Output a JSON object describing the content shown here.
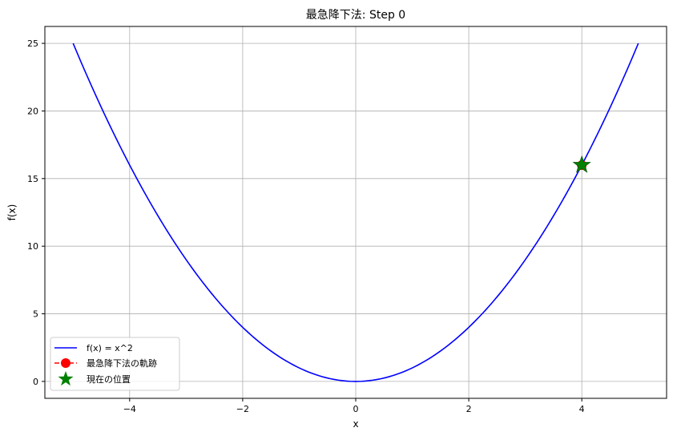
{
  "chart_data": {
    "type": "line",
    "title": "最急降下法: Step 0",
    "xlabel": "x",
    "ylabel": "f(x)",
    "xlim": [
      -5.5,
      5.5
    ],
    "ylim": [
      -1.25,
      26.25
    ],
    "xticks": [
      -4,
      -2,
      0,
      2,
      4
    ],
    "yticks": [
      0,
      5,
      10,
      15,
      20,
      25
    ],
    "grid": true,
    "legend_position": "lower-left",
    "series": [
      {
        "name": "f(x) = x^2",
        "kind": "curve",
        "function": "x^2",
        "x_range": [
          -5,
          5
        ],
        "color": "#0000ff"
      },
      {
        "name": "最急降下法の軌跡",
        "kind": "line-marker",
        "x": [
          4
        ],
        "y": [
          16
        ],
        "color": "#ff0000"
      },
      {
        "name": "現在の位置",
        "kind": "star",
        "x": [
          4
        ],
        "y": [
          16
        ],
        "color": "#008000"
      }
    ]
  }
}
